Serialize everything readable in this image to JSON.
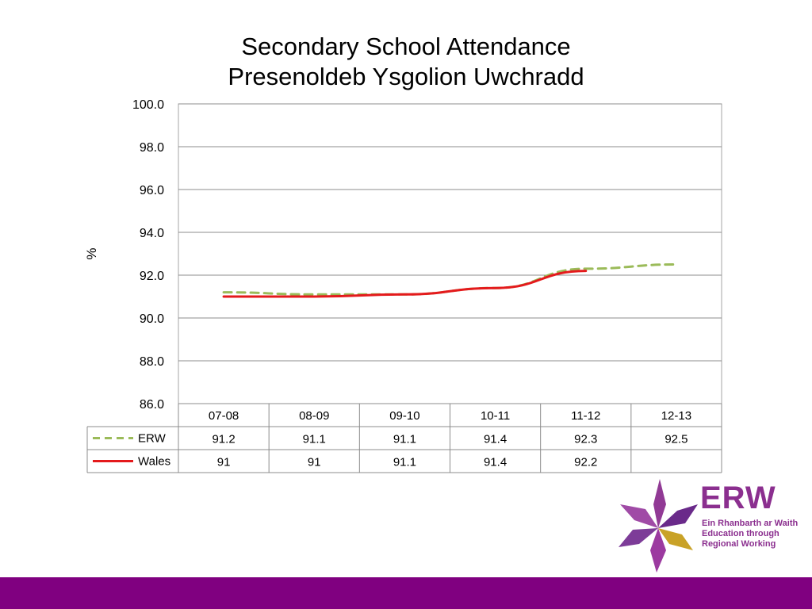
{
  "title": {
    "line1": "Secondary School Attendance",
    "line2": "Presenoldeb Ysgolion Uwchradd"
  },
  "chart_data": {
    "type": "line",
    "ylabel": "%",
    "xlabel": "",
    "ylim": [
      86.0,
      100.0
    ],
    "ytick_step": 2.0,
    "ytick_labels": [
      "86.0",
      "88.0",
      "90.0",
      "92.0",
      "94.0",
      "96.0",
      "98.0",
      "100.0"
    ],
    "grid": true,
    "legend": "data-table",
    "categories": [
      "07-08",
      "08-09",
      "09-10",
      "10-11",
      "11-12",
      "12-13"
    ],
    "series": [
      {
        "name": "ERW",
        "values": [
          91.2,
          91.1,
          91.1,
          91.4,
          92.3,
          92.5
        ],
        "labels": [
          "91.2",
          "91.1",
          "91.1",
          "91.4",
          "92.3",
          "92.5"
        ],
        "color": "#9bbb59",
        "style": "dashed"
      },
      {
        "name": "Wales",
        "values": [
          91,
          91,
          91.1,
          91.4,
          92.2,
          null
        ],
        "labels": [
          "91",
          "91",
          "91.1",
          "91.4",
          "92.2",
          ""
        ],
        "color": "#e41a1c",
        "style": "solid"
      }
    ]
  },
  "logo": {
    "name": "ERW",
    "tagline": [
      "Ein Rhanbarth ar Waith",
      "Education through",
      "Regional Working"
    ],
    "colors": {
      "primary": "#8b2f8f",
      "accent": "#c9a227"
    }
  },
  "footer": {
    "color": "#800080"
  }
}
